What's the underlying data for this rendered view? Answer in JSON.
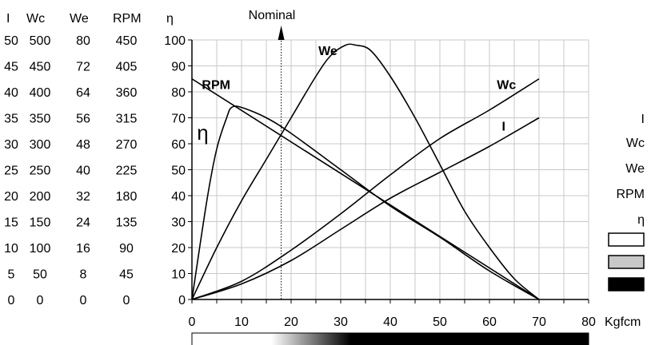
{
  "chart_data": {
    "type": "line",
    "title": "",
    "xlabel": "",
    "x_unit": "Kgfcm",
    "xlim": [
      0,
      80
    ],
    "x_ticks": [
      "0",
      "10",
      "20",
      "30",
      "40",
      "50",
      "60",
      "70",
      "80"
    ],
    "grid": true,
    "scales": {
      "headers": [
        "I",
        "Wc",
        "We",
        "RPM",
        "η"
      ],
      "columns": {
        "I": [
          "50",
          "45",
          "40",
          "35",
          "30",
          "25",
          "20",
          "15",
          "10",
          "5",
          "0"
        ],
        "Wc": [
          "500",
          "450",
          "400",
          "350",
          "300",
          "250",
          "200",
          "150",
          "100",
          "50",
          "0"
        ],
        "We": [
          "80",
          "72",
          "64",
          "56",
          "48",
          "40",
          "32",
          "24",
          "16",
          "8",
          "0"
        ],
        "RPM": [
          "450",
          "405",
          "360",
          "315",
          "270",
          "225",
          "180",
          "135",
          "90",
          "45",
          "0"
        ],
        "eta": [
          "100",
          "90",
          "80",
          "70",
          "60",
          "50",
          "40",
          "30",
          "20",
          "10",
          "0"
        ]
      }
    },
    "annotation": {
      "label": "Nominal",
      "x": 18
    },
    "series": [
      {
        "name": "We",
        "label_pos": [
          25.5,
          96
        ],
        "points": [
          [
            0,
            0
          ],
          [
            5,
            20
          ],
          [
            10,
            38
          ],
          [
            15,
            54
          ],
          [
            20,
            70
          ],
          [
            25,
            86
          ],
          [
            28,
            94
          ],
          [
            31,
            98
          ],
          [
            33,
            98
          ],
          [
            36,
            96
          ],
          [
            40,
            86
          ],
          [
            45,
            70
          ],
          [
            50,
            52
          ],
          [
            55,
            34
          ],
          [
            60,
            20
          ],
          [
            65,
            8
          ],
          [
            70,
            0
          ]
        ]
      },
      {
        "name": "RPM",
        "label_pos": [
          2,
          83
        ],
        "points": [
          [
            0,
            85
          ],
          [
            70,
            0
          ]
        ]
      },
      {
        "name": "Wc",
        "label_pos": [
          61.5,
          83
        ],
        "points": [
          [
            0,
            0
          ],
          [
            10,
            7
          ],
          [
            20,
            19
          ],
          [
            30,
            33
          ],
          [
            40,
            48
          ],
          [
            50,
            62
          ],
          [
            60,
            73
          ],
          [
            70,
            85
          ]
        ]
      },
      {
        "name": "I",
        "label_pos": [
          62.5,
          67
        ],
        "points": [
          [
            0,
            0
          ],
          [
            10,
            6
          ],
          [
            20,
            15
          ],
          [
            30,
            27
          ],
          [
            40,
            39
          ],
          [
            50,
            49
          ],
          [
            60,
            59
          ],
          [
            70,
            70
          ]
        ]
      },
      {
        "name": "η",
        "label_pos": [
          1,
          64
        ],
        "points": [
          [
            0,
            0
          ],
          [
            3,
            38
          ],
          [
            5,
            58
          ],
          [
            7,
            70
          ],
          [
            8,
            74
          ],
          [
            10,
            74
          ],
          [
            15,
            70
          ],
          [
            20,
            64
          ],
          [
            30,
            50
          ],
          [
            40,
            36
          ],
          [
            50,
            24
          ],
          [
            60,
            11
          ],
          [
            70,
            0
          ]
        ]
      }
    ],
    "legend": {
      "placement": "right",
      "entries": [
        "I",
        "Wc",
        "We",
        "RPM",
        "η"
      ],
      "swatches": [
        "#ffffff",
        "#c8c8c8",
        "#000000"
      ]
    }
  },
  "colors": {
    "line": "#000000",
    "grid": "#c8c8c8",
    "swatch_grey": "#c8c8c8"
  }
}
